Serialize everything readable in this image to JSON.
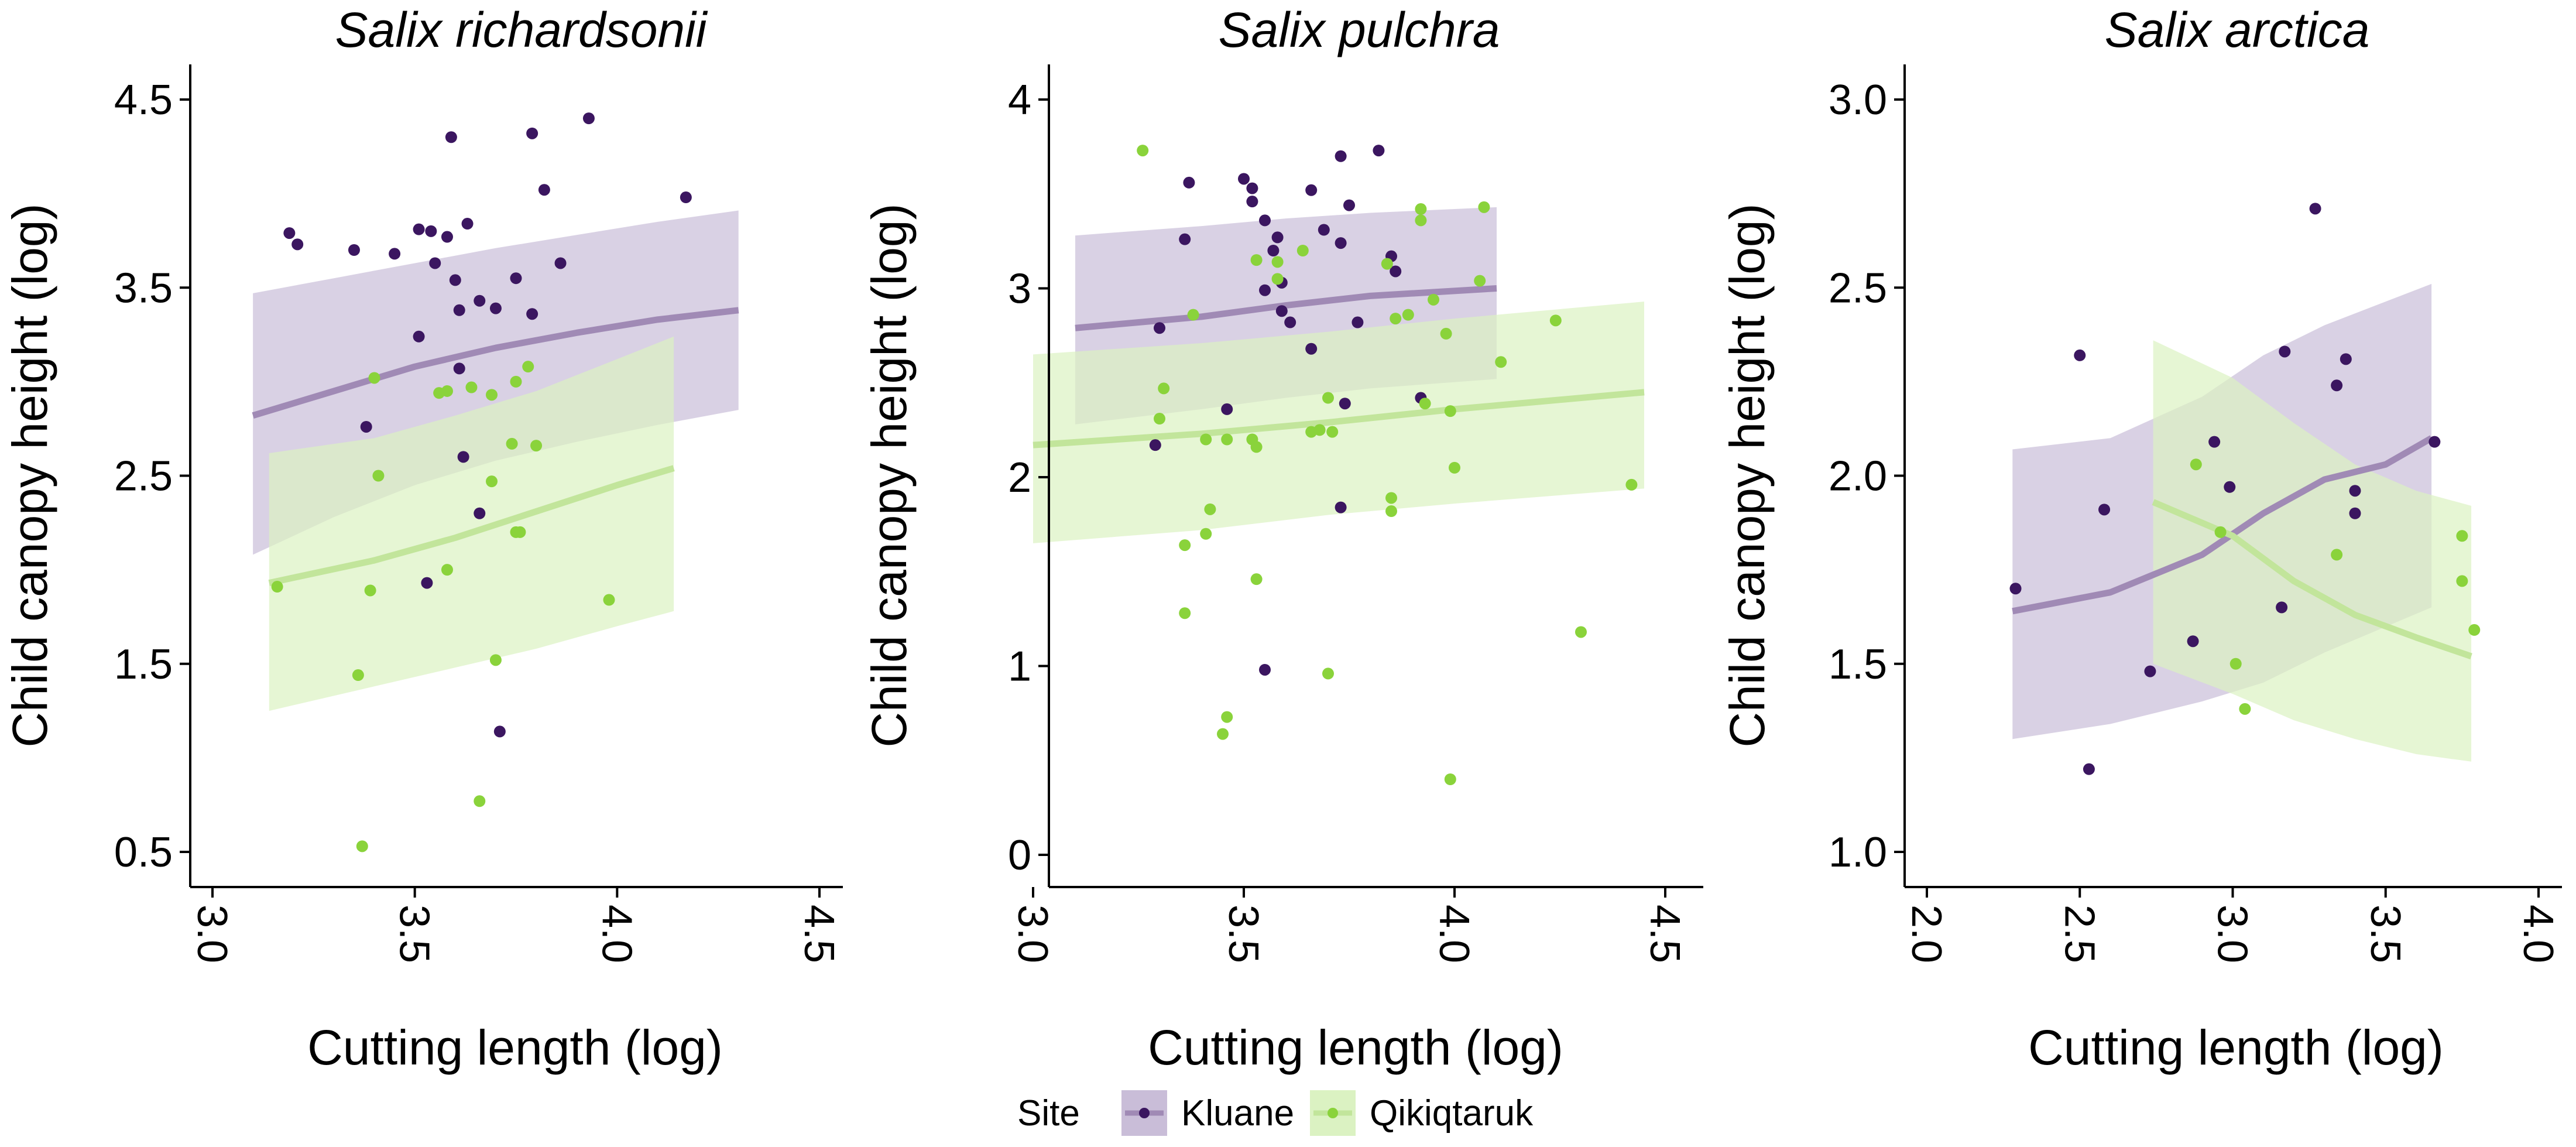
{
  "legend": {
    "title": "Site",
    "items": [
      {
        "label": "Kluane",
        "point_color": "#3b1660",
        "line_color": "#a08ab5",
        "ribbon_color": "#c9bdd8"
      },
      {
        "label": "Qikiqtaruk",
        "point_color": "#8ad33b",
        "line_color": "#c2e59b",
        "ribbon_color": "#dbf2c2"
      }
    ]
  },
  "chart_data": [
    {
      "type": "scatter",
      "title": "Salix richardsonii",
      "xlabel": "Cutting length (log)",
      "ylabel": "Child canopy height (log)",
      "xlim": [
        3.0,
        4.5
      ],
      "ylim": [
        0.5,
        4.5
      ],
      "xticks": [
        3.0,
        3.5,
        4.0,
        4.5
      ],
      "yticks": [
        0.5,
        1.5,
        2.5,
        3.5,
        4.5
      ],
      "xtick_labels": [
        "3.0",
        "3.5",
        "4.0",
        "4.5"
      ],
      "ytick_labels": [
        "0.5",
        "1.5",
        "2.5",
        "3.5",
        "4.5"
      ],
      "series": [
        {
          "name": "Kluane",
          "points": [
            [
              3.19,
              3.79
            ],
            [
              3.21,
              3.73
            ],
            [
              3.35,
              3.7
            ],
            [
              3.45,
              3.68
            ],
            [
              3.51,
              3.81
            ],
            [
              3.51,
              3.24
            ],
            [
              3.54,
              3.8
            ],
            [
              3.55,
              3.63
            ],
            [
              3.58,
              3.77
            ],
            [
              3.59,
              4.3
            ],
            [
              3.6,
              3.54
            ],
            [
              3.63,
              3.84
            ],
            [
              3.61,
              3.38
            ],
            [
              3.61,
              3.07
            ],
            [
              3.38,
              2.76
            ],
            [
              3.66,
              3.43
            ],
            [
              3.7,
              3.39
            ],
            [
              3.75,
              3.55
            ],
            [
              3.79,
              4.32
            ],
            [
              3.79,
              3.36
            ],
            [
              3.82,
              4.02
            ],
            [
              3.86,
              3.63
            ],
            [
              3.93,
              4.4
            ],
            [
              4.17,
              3.98
            ],
            [
              3.62,
              2.6
            ],
            [
              3.66,
              2.3
            ],
            [
              3.53,
              1.93
            ],
            [
              3.71,
              1.14
            ]
          ],
          "fit": [
            [
              3.1,
              2.82
            ],
            [
              3.3,
              2.95
            ],
            [
              3.5,
              3.08
            ],
            [
              3.7,
              3.18
            ],
            [
              3.9,
              3.26
            ],
            [
              4.1,
              3.33
            ],
            [
              4.3,
              3.38
            ]
          ],
          "ribbon": [
            [
              3.1,
              2.08,
              3.47
            ],
            [
              3.3,
              2.28,
              3.55
            ],
            [
              3.5,
              2.45,
              3.63
            ],
            [
              3.7,
              2.58,
              3.71
            ],
            [
              3.9,
              2.68,
              3.78
            ],
            [
              4.1,
              2.77,
              3.85
            ],
            [
              4.3,
              2.85,
              3.91
            ]
          ]
        },
        {
          "name": "Qikiqtaruk",
          "points": [
            [
              3.16,
              1.91
            ],
            [
              3.39,
              1.89
            ],
            [
              3.41,
              2.5
            ],
            [
              3.36,
              1.44
            ],
            [
              3.4,
              3.02
            ],
            [
              3.56,
              2.94
            ],
            [
              3.58,
              2.95
            ],
            [
              3.58,
              2.0
            ],
            [
              3.64,
              2.97
            ],
            [
              3.69,
              2.93
            ],
            [
              3.69,
              2.47
            ],
            [
              3.7,
              1.52
            ],
            [
              3.74,
              2.67
            ],
            [
              3.75,
              3.0
            ],
            [
              3.75,
              2.2
            ],
            [
              3.76,
              2.2
            ],
            [
              3.78,
              3.08
            ],
            [
              3.8,
              2.66
            ],
            [
              3.98,
              1.84
            ],
            [
              3.37,
              0.53
            ],
            [
              3.66,
              0.77
            ]
          ],
          "fit": [
            [
              3.14,
              1.93
            ],
            [
              3.4,
              2.05
            ],
            [
              3.6,
              2.17
            ],
            [
              3.8,
              2.31
            ],
            [
              4.0,
              2.45
            ],
            [
              4.14,
              2.54
            ]
          ],
          "ribbon": [
            [
              3.14,
              1.25,
              2.62
            ],
            [
              3.4,
              1.38,
              2.7
            ],
            [
              3.6,
              1.48,
              2.82
            ],
            [
              3.8,
              1.58,
              2.95
            ],
            [
              4.0,
              1.7,
              3.12
            ],
            [
              4.14,
              1.78,
              3.24
            ]
          ]
        }
      ]
    },
    {
      "type": "scatter",
      "title": "Salix pulchra",
      "xlabel": "Cutting length (log)",
      "ylabel": "Child canopy height (log)",
      "xlim": [
        3.0,
        4.5
      ],
      "ylim": [
        0,
        4
      ],
      "xticks": [
        3.0,
        3.5,
        4.0,
        4.5
      ],
      "yticks": [
        0,
        1,
        2,
        3,
        4
      ],
      "xtick_labels": [
        "3.0",
        "3.5",
        "4.0",
        "4.5"
      ],
      "ytick_labels": [
        "0",
        "1",
        "2",
        "3",
        "4"
      ],
      "series": [
        {
          "name": "Kluane",
          "points": [
            [
              3.37,
              3.56
            ],
            [
              3.5,
              3.58
            ],
            [
              3.52,
              3.53
            ],
            [
              3.52,
              3.46
            ],
            [
              3.55,
              3.36
            ],
            [
              3.57,
              3.2
            ],
            [
              3.59,
              3.03
            ],
            [
              3.59,
              2.88
            ],
            [
              3.61,
              2.82
            ],
            [
              3.55,
              2.99
            ],
            [
              3.58,
              3.27
            ],
            [
              3.66,
              3.52
            ],
            [
              3.69,
              3.31
            ],
            [
              3.73,
              3.7
            ],
            [
              3.75,
              3.44
            ],
            [
              3.82,
              3.73
            ],
            [
              3.85,
              3.17
            ],
            [
              3.86,
              3.09
            ],
            [
              3.73,
              3.24
            ],
            [
              3.36,
              3.26
            ],
            [
              3.3,
              2.79
            ],
            [
              3.29,
              2.17
            ],
            [
              3.46,
              2.36
            ],
            [
              3.73,
              1.84
            ],
            [
              3.66,
              2.68
            ],
            [
              3.77,
              2.82
            ],
            [
              3.74,
              2.39
            ],
            [
              3.92,
              2.42
            ],
            [
              3.55,
              0.98
            ]
          ],
          "fit": [
            [
              3.1,
              2.79
            ],
            [
              3.4,
              2.85
            ],
            [
              3.6,
              2.91
            ],
            [
              3.8,
              2.96
            ],
            [
              3.95,
              2.98
            ],
            [
              4.1,
              3.0
            ]
          ],
          "ribbon": [
            [
              3.1,
              2.28,
              3.28
            ],
            [
              3.4,
              2.36,
              3.33
            ],
            [
              3.6,
              2.42,
              3.37
            ],
            [
              3.8,
              2.47,
              3.4
            ],
            [
              4.1,
              2.52,
              3.43
            ]
          ]
        },
        {
          "name": "Qikiqtaruk",
          "points": [
            [
              3.26,
              3.73
            ],
            [
              3.31,
              2.47
            ],
            [
              3.3,
              2.31
            ],
            [
              3.38,
              2.86
            ],
            [
              3.41,
              2.2
            ],
            [
              3.46,
              2.2
            ],
            [
              3.52,
              2.2
            ],
            [
              3.53,
              2.16
            ],
            [
              3.53,
              3.15
            ],
            [
              3.58,
              3.14
            ],
            [
              3.58,
              3.05
            ],
            [
              3.64,
              3.2
            ],
            [
              3.66,
              2.24
            ],
            [
              3.68,
              2.25
            ],
            [
              3.71,
              2.24
            ],
            [
              3.7,
              2.42
            ],
            [
              3.84,
              3.13
            ],
            [
              3.86,
              2.84
            ],
            [
              3.89,
              2.86
            ],
            [
              3.92,
              3.42
            ],
            [
              3.92,
              3.36
            ],
            [
              3.95,
              2.94
            ],
            [
              3.98,
              2.76
            ],
            [
              3.99,
              2.35
            ],
            [
              4.06,
              3.04
            ],
            [
              4.07,
              3.43
            ],
            [
              4.11,
              2.61
            ],
            [
              4.24,
              2.83
            ],
            [
              3.93,
              2.39
            ],
            [
              3.85,
              1.89
            ],
            [
              3.85,
              1.82
            ],
            [
              4.0,
              2.05
            ],
            [
              4.42,
              1.96
            ],
            [
              3.42,
              1.83
            ],
            [
              3.41,
              1.7
            ],
            [
              3.36,
              1.64
            ],
            [
              3.36,
              1.28
            ],
            [
              3.53,
              1.46
            ],
            [
              3.46,
              0.73
            ],
            [
              3.45,
              0.64
            ],
            [
              3.7,
              0.96
            ],
            [
              3.99,
              0.4
            ],
            [
              4.3,
              1.18
            ]
          ],
          "fit": [
            [
              3.0,
              2.17
            ],
            [
              3.4,
              2.23
            ],
            [
              3.7,
              2.29
            ],
            [
              4.0,
              2.36
            ],
            [
              4.2,
              2.4
            ],
            [
              4.45,
              2.45
            ]
          ],
          "ribbon": [
            [
              3.0,
              1.65,
              2.65
            ],
            [
              3.4,
              1.72,
              2.71
            ],
            [
              3.7,
              1.8,
              2.77
            ],
            [
              4.0,
              1.86,
              2.84
            ],
            [
              4.45,
              1.94,
              2.93
            ]
          ]
        }
      ]
    },
    {
      "type": "scatter",
      "title": "Salix arctica",
      "xlabel": "Cutting length (log)",
      "ylabel": "Child canopy height (log)",
      "xlim": [
        2.0,
        4.0
      ],
      "ylim": [
        1.0,
        3.0
      ],
      "xticks": [
        2.0,
        2.5,
        3.0,
        3.5,
        4.0
      ],
      "yticks": [
        1.0,
        1.5,
        2.0,
        2.5,
        3.0
      ],
      "xtick_labels": [
        "2.0",
        "2.5",
        "3.0",
        "3.5",
        "4.0"
      ],
      "ytick_labels": [
        "1.0",
        "1.5",
        "2.0",
        "2.5",
        "3.0"
      ],
      "series": [
        {
          "name": "Kluane",
          "points": [
            [
              2.29,
              1.7
            ],
            [
              2.5,
              2.32
            ],
            [
              2.53,
              1.22
            ],
            [
              2.58,
              1.91
            ],
            [
              2.73,
              1.48
            ],
            [
              2.87,
              1.56
            ],
            [
              2.94,
              2.09
            ],
            [
              2.99,
              1.97
            ],
            [
              3.16,
              1.65
            ],
            [
              3.17,
              2.33
            ],
            [
              3.27,
              2.71
            ],
            [
              3.34,
              2.24
            ],
            [
              3.37,
              2.31
            ],
            [
              3.4,
              1.96
            ],
            [
              3.4,
              1.9
            ],
            [
              3.66,
              2.09
            ]
          ],
          "fit": [
            [
              2.28,
              1.64
            ],
            [
              2.6,
              1.69
            ],
            [
              2.9,
              1.79
            ],
            [
              3.1,
              1.9
            ],
            [
              3.3,
              1.99
            ],
            [
              3.5,
              2.03
            ],
            [
              3.65,
              2.1
            ]
          ],
          "ribbon": [
            [
              2.28,
              1.3,
              2.07
            ],
            [
              2.6,
              1.34,
              2.1
            ],
            [
              2.9,
              1.4,
              2.21
            ],
            [
              3.1,
              1.45,
              2.32
            ],
            [
              3.3,
              1.53,
              2.4
            ],
            [
              3.65,
              1.65,
              2.51
            ]
          ]
        },
        {
          "name": "Qikiqtaruk",
          "points": [
            [
              2.88,
              2.03
            ],
            [
              2.96,
              1.85
            ],
            [
              3.01,
              1.5
            ],
            [
              3.04,
              1.38
            ],
            [
              3.34,
              1.79
            ],
            [
              3.75,
              1.84
            ],
            [
              3.75,
              1.72
            ],
            [
              3.79,
              1.59
            ]
          ],
          "fit": [
            [
              2.74,
              1.93
            ],
            [
              3.0,
              1.84
            ],
            [
              3.2,
              1.72
            ],
            [
              3.4,
              1.63
            ],
            [
              3.6,
              1.57
            ],
            [
              3.78,
              1.52
            ]
          ],
          "ribbon": [
            [
              2.74,
              1.5,
              2.36
            ],
            [
              3.0,
              1.42,
              2.26
            ],
            [
              3.2,
              1.35,
              2.14
            ],
            [
              3.4,
              1.3,
              2.03
            ],
            [
              3.6,
              1.26,
              1.96
            ],
            [
              3.78,
              1.24,
              1.92
            ]
          ]
        }
      ]
    }
  ]
}
